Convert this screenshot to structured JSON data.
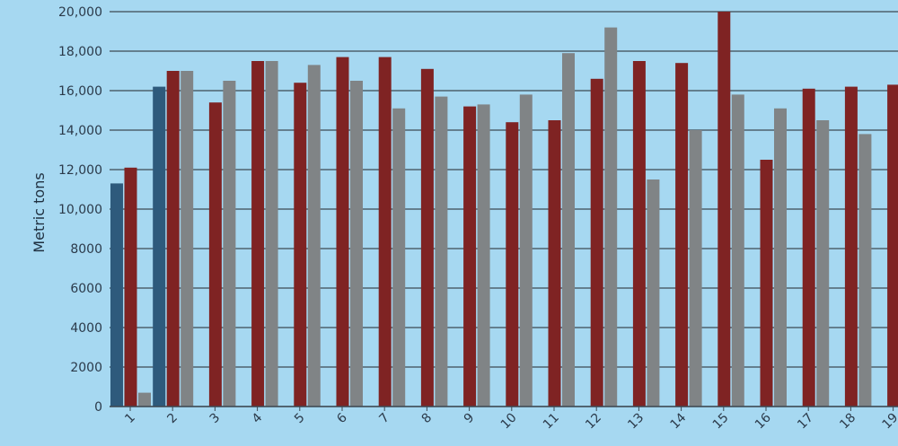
{
  "chart_data": {
    "type": "bar",
    "ylabel": "Metric tons",
    "ylim": [
      0,
      20000
    ],
    "yticks": [
      0,
      2000,
      4000,
      6000,
      8000,
      10000,
      12000,
      14000,
      16000,
      18000,
      20000
    ],
    "ytick_labels": [
      "0",
      "2000",
      "4000",
      "6000",
      "8000",
      "10,000",
      "12,000",
      "14,000",
      "16,000",
      "18,000",
      "20,000"
    ],
    "categories": [
      "1",
      "2",
      "3",
      "4",
      "5",
      "6",
      "7",
      "8",
      "9",
      "10",
      "11",
      "12",
      "13",
      "14",
      "15",
      "16",
      "17",
      "18",
      "19"
    ],
    "grid": true,
    "series": [
      {
        "color": "#2e5a7c",
        "values": [
          11300,
          16200,
          null,
          null,
          null,
          null,
          null,
          null,
          null,
          null,
          null,
          null,
          null,
          null,
          null,
          null,
          null,
          null,
          null
        ]
      },
      {
        "color": "#7f2323",
        "values": [
          12100,
          17000,
          15400,
          17500,
          16400,
          17700,
          17700,
          17100,
          15200,
          14400,
          14500,
          16600,
          17500,
          17400,
          20000,
          12500,
          16100,
          16200,
          16300
        ]
      },
      {
        "color": "#808486",
        "values": [
          700,
          17000,
          16500,
          17500,
          17300,
          16500,
          15100,
          15700,
          15300,
          15800,
          17900,
          19200,
          11500,
          14000,
          15800,
          15100,
          14500,
          13800,
          null
        ]
      }
    ]
  }
}
